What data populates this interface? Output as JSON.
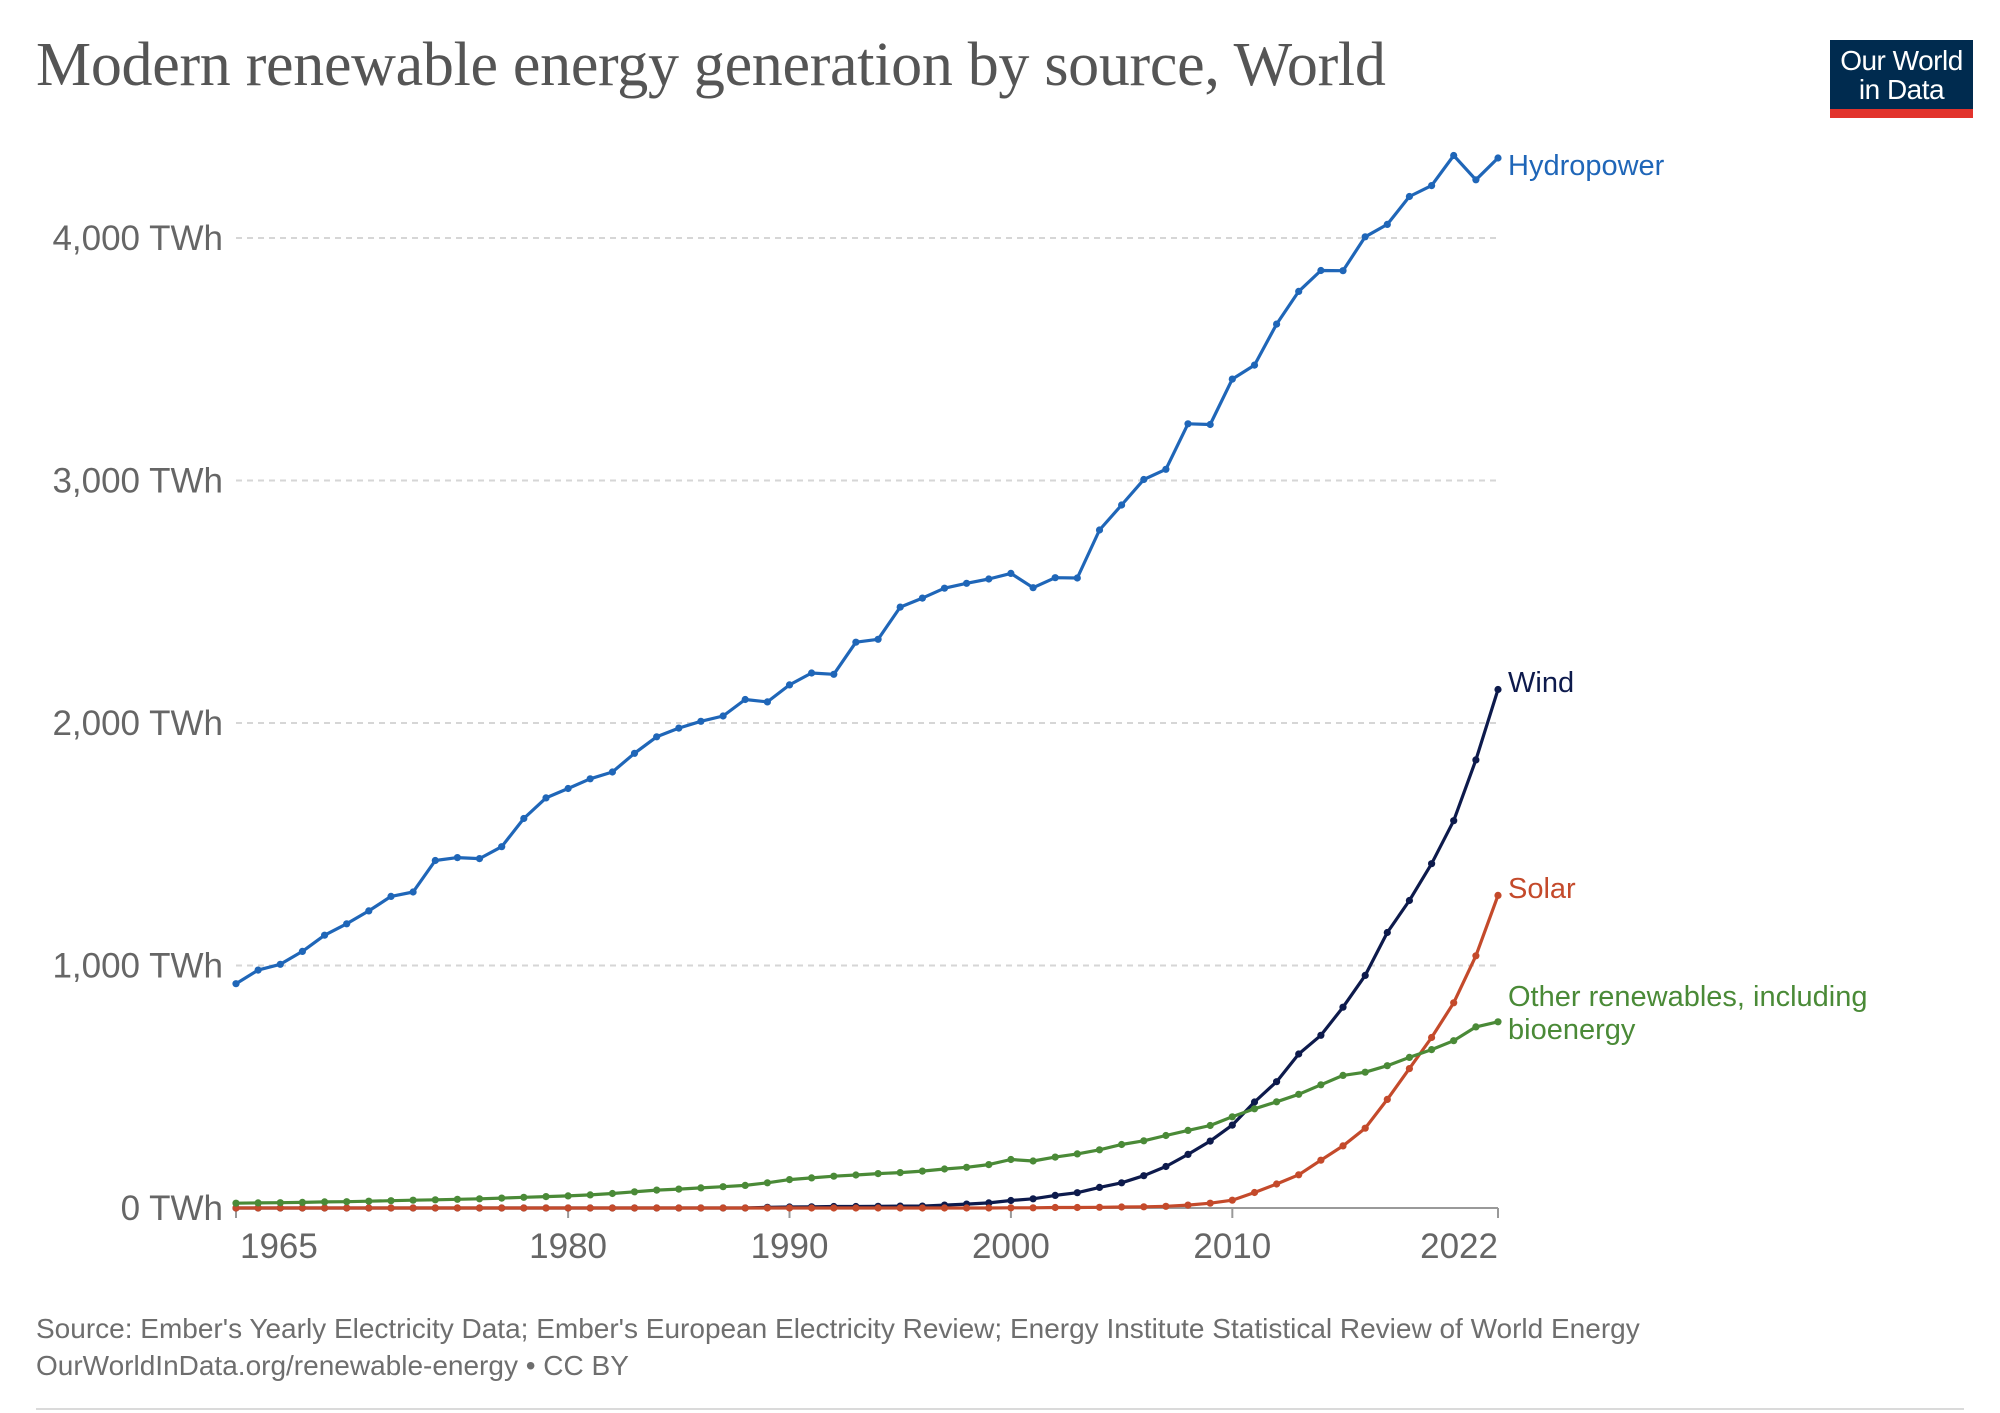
{
  "header": {
    "title": "Modern renewable energy generation by source, World"
  },
  "logo": {
    "line1": "Our World",
    "line2": "in Data",
    "colors": {
      "background": "#002b4f",
      "stripe": "#e2332c"
    }
  },
  "footer": {
    "source": "Source: Ember's Yearly Electricity Data; Ember's European Electricity Review; Energy Institute Statistical Review of World Energy",
    "url": "OurWorldInData.org/renewable-energy • CC BY"
  },
  "chart_data": {
    "type": "line",
    "title": "Modern renewable energy generation by source, World",
    "xlabel": "",
    "ylabel": "",
    "xlim": [
      1965,
      2022
    ],
    "ylim": [
      0,
      4000
    ],
    "grid": true,
    "legend": "inline labels at line ends (right)",
    "x_ticks": [
      1965,
      1980,
      1990,
      2000,
      2010,
      2022
    ],
    "y_ticks": [
      {
        "value": 0,
        "label": "0 TWh"
      },
      {
        "value": 1000,
        "label": "1,000 TWh"
      },
      {
        "value": 2000,
        "label": "2,000 TWh"
      },
      {
        "value": 3000,
        "label": "3,000 TWh"
      },
      {
        "value": 4000,
        "label": "4,000 TWh"
      }
    ],
    "x": [
      1965,
      1966,
      1967,
      1968,
      1969,
      1970,
      1971,
      1972,
      1973,
      1974,
      1975,
      1976,
      1977,
      1978,
      1979,
      1980,
      1981,
      1982,
      1983,
      1984,
      1985,
      1986,
      1987,
      1988,
      1989,
      1990,
      1991,
      1992,
      1993,
      1994,
      1995,
      1996,
      1997,
      1998,
      1999,
      2000,
      2001,
      2002,
      2003,
      2004,
      2005,
      2006,
      2007,
      2008,
      2009,
      2010,
      2011,
      2012,
      2013,
      2014,
      2015,
      2016,
      2017,
      2018,
      2019,
      2020,
      2021,
      2022
    ],
    "series": [
      {
        "name": "Hydropower",
        "label_lines": [
          "Hydropower"
        ],
        "color": "#1f66b8",
        "values": [
          925,
          981,
          1005,
          1058,
          1125,
          1172,
          1225,
          1285,
          1303,
          1433,
          1445,
          1441,
          1490,
          1606,
          1691,
          1730,
          1770,
          1798,
          1875,
          1943,
          1979,
          2007,
          2029,
          2097,
          2087,
          2157,
          2206,
          2201,
          2333,
          2345,
          2478,
          2515,
          2556,
          2576,
          2594,
          2617,
          2558,
          2599,
          2598,
          2796,
          2899,
          3004,
          3046,
          3234,
          3231,
          3418,
          3476,
          3645,
          3780,
          3866,
          3865,
          4005,
          4056,
          4171,
          4216,
          4340,
          4240,
          4330
        ]
      },
      {
        "name": "Wind",
        "label_lines": [
          "Wind"
        ],
        "color": "#0d1a4c",
        "values": [
          0,
          0,
          0,
          0,
          0,
          0,
          0,
          0,
          0,
          0,
          0,
          0,
          0,
          0,
          0,
          0,
          0,
          0,
          0,
          0,
          0,
          0,
          0,
          0,
          3,
          4,
          5,
          6,
          6,
          7,
          8,
          8,
          12,
          16,
          21,
          31,
          38,
          52,
          63,
          85,
          104,
          133,
          171,
          221,
          276,
          342,
          437,
          521,
          635,
          712,
          828,
          959,
          1136,
          1268,
          1420,
          1597,
          1848,
          2138
        ]
      },
      {
        "name": "Solar",
        "label_lines": [
          "Solar"
        ],
        "color": "#c44a2b",
        "values": [
          0,
          0,
          0,
          0,
          0,
          0,
          0,
          0,
          0,
          0,
          0,
          0,
          0,
          0,
          0,
          0,
          0,
          0,
          0,
          0,
          0,
          0,
          0,
          0,
          0,
          0,
          0,
          0,
          0,
          0,
          0,
          0,
          0,
          0,
          0,
          1,
          1,
          2,
          2,
          3,
          4,
          5,
          7,
          12,
          20,
          32,
          64,
          99,
          137,
          197,
          256,
          329,
          448,
          575,
          703,
          846,
          1040,
          1289
        ]
      },
      {
        "name": "Other renewables, including bioenergy",
        "label_lines": [
          "Other renewables, including",
          "bioenergy"
        ],
        "color": "#4a8a37",
        "values": [
          20,
          21,
          22,
          23,
          25,
          26,
          28,
          30,
          32,
          34,
          36,
          38,
          41,
          44,
          47,
          50,
          54,
          60,
          67,
          74,
          78,
          83,
          88,
          93,
          104,
          117,
          124,
          131,
          136,
          142,
          146,
          152,
          161,
          168,
          179,
          200,
          194,
          210,
          223,
          240,
          262,
          277,
          299,
          320,
          340,
          376,
          409,
          438,
          469,
          508,
          547,
          560,
          587,
          621,
          653,
          690,
          747,
          768
        ]
      }
    ]
  }
}
